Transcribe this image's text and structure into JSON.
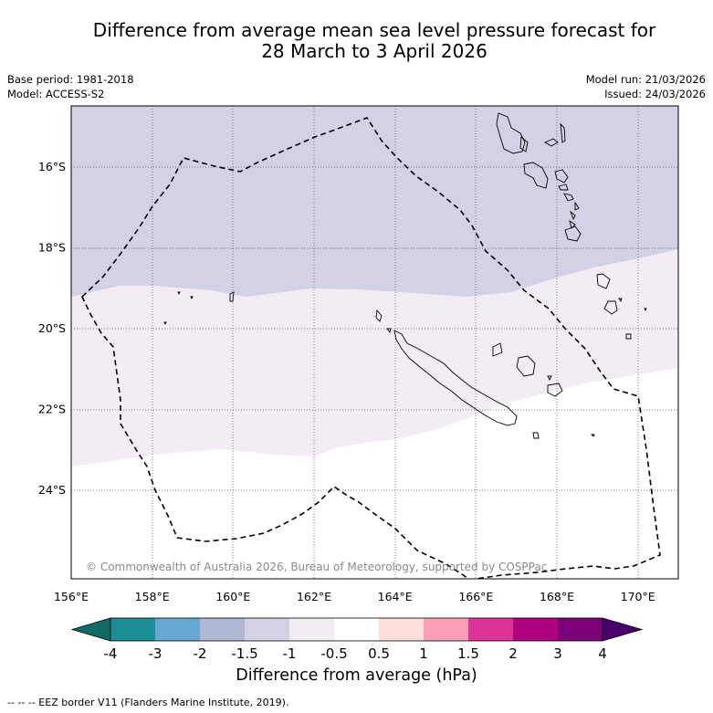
{
  "title_line1": "Difference from average mean sea level pressure forecast for",
  "title_line2": "28 March to 3 April 2026",
  "base_period": "Base period: 1981-2018",
  "model": "Model: ACCESS-S2",
  "model_run": "Model run: 21/03/2026",
  "issued": "Issued: 24/03/2026",
  "copyright": "© Commonwealth of Australia 2026, Bureau of Meteorology, supported by COSPPac",
  "lat_labels": [
    "16°S",
    "18°S",
    "20°S",
    "22°S",
    "24°S"
  ],
  "lat_values": [
    -16,
    -18,
    -20,
    -22,
    -24
  ],
  "lon_labels": [
    "156°E",
    "158°E",
    "160°E",
    "162°E",
    "164°E",
    "166°E",
    "168°E",
    "170°E"
  ],
  "lon_values": [
    156,
    158,
    160,
    162,
    164,
    166,
    168,
    170
  ],
  "map_extent": {
    "lon_min": 156,
    "lon_max": 171,
    "lat_min": -26.2,
    "lat_max": -14.5
  },
  "colorbar": {
    "label": "Difference from average (hPa)",
    "ticks": [
      "-4",
      "-3",
      "-2",
      "-1.5",
      "-1",
      "-0.5",
      "0.5",
      "1",
      "1.5",
      "2",
      "3",
      "4"
    ],
    "colors": [
      "#0f6b63",
      "#1b8e96",
      "#66a9d0",
      "#b0b8d6",
      "#d2d1e6",
      "#f3ecf5",
      "#ffffff",
      "#fde0dd",
      "#fa9fb5",
      "#dd3497",
      "#ae017e",
      "#7a0177",
      "#49006a"
    ]
  },
  "legend_text": "--  --  -- EEZ border V11 (Flanders Marine Institute, 2019)."
}
